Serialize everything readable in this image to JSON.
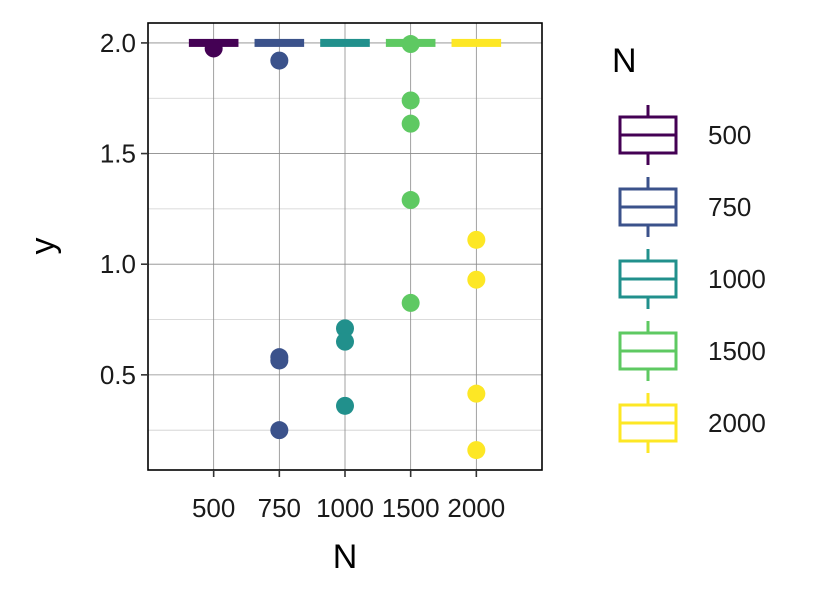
{
  "chart_data": {
    "type": "boxplot",
    "xlabel": "N",
    "ylabel": "y",
    "categories": [
      "500",
      "750",
      "1000",
      "1500",
      "2000"
    ],
    "ylim": [
      0.07,
      2.09
    ],
    "yticks": [
      0.5,
      1.0,
      1.5,
      2.0
    ],
    "ytick_labels": [
      "0.5",
      "1.0",
      "1.5",
      "2.0"
    ],
    "grid": true,
    "legend": {
      "title": "N",
      "placement": "right",
      "entries": [
        "500",
        "750",
        "1000",
        "1500",
        "2000"
      ]
    },
    "series": [
      {
        "category": "500",
        "color": "#440154",
        "median": 2.0,
        "outliers": [
          1.975
        ]
      },
      {
        "category": "750",
        "color": "#3b528b",
        "median": 2.0,
        "outliers": [
          1.92,
          0.58,
          0.565,
          0.25
        ]
      },
      {
        "category": "1000",
        "color": "#21908c",
        "median": 2.0,
        "outliers": [
          0.71,
          0.65,
          0.36
        ]
      },
      {
        "category": "1500",
        "color": "#5ec962",
        "median": 2.0,
        "outliers": [
          1.995,
          1.74,
          1.635,
          1.29,
          0.825
        ]
      },
      {
        "category": "2000",
        "color": "#fde725",
        "median": 2.0,
        "outliers": [
          1.11,
          0.93,
          0.415,
          0.16
        ]
      }
    ]
  }
}
